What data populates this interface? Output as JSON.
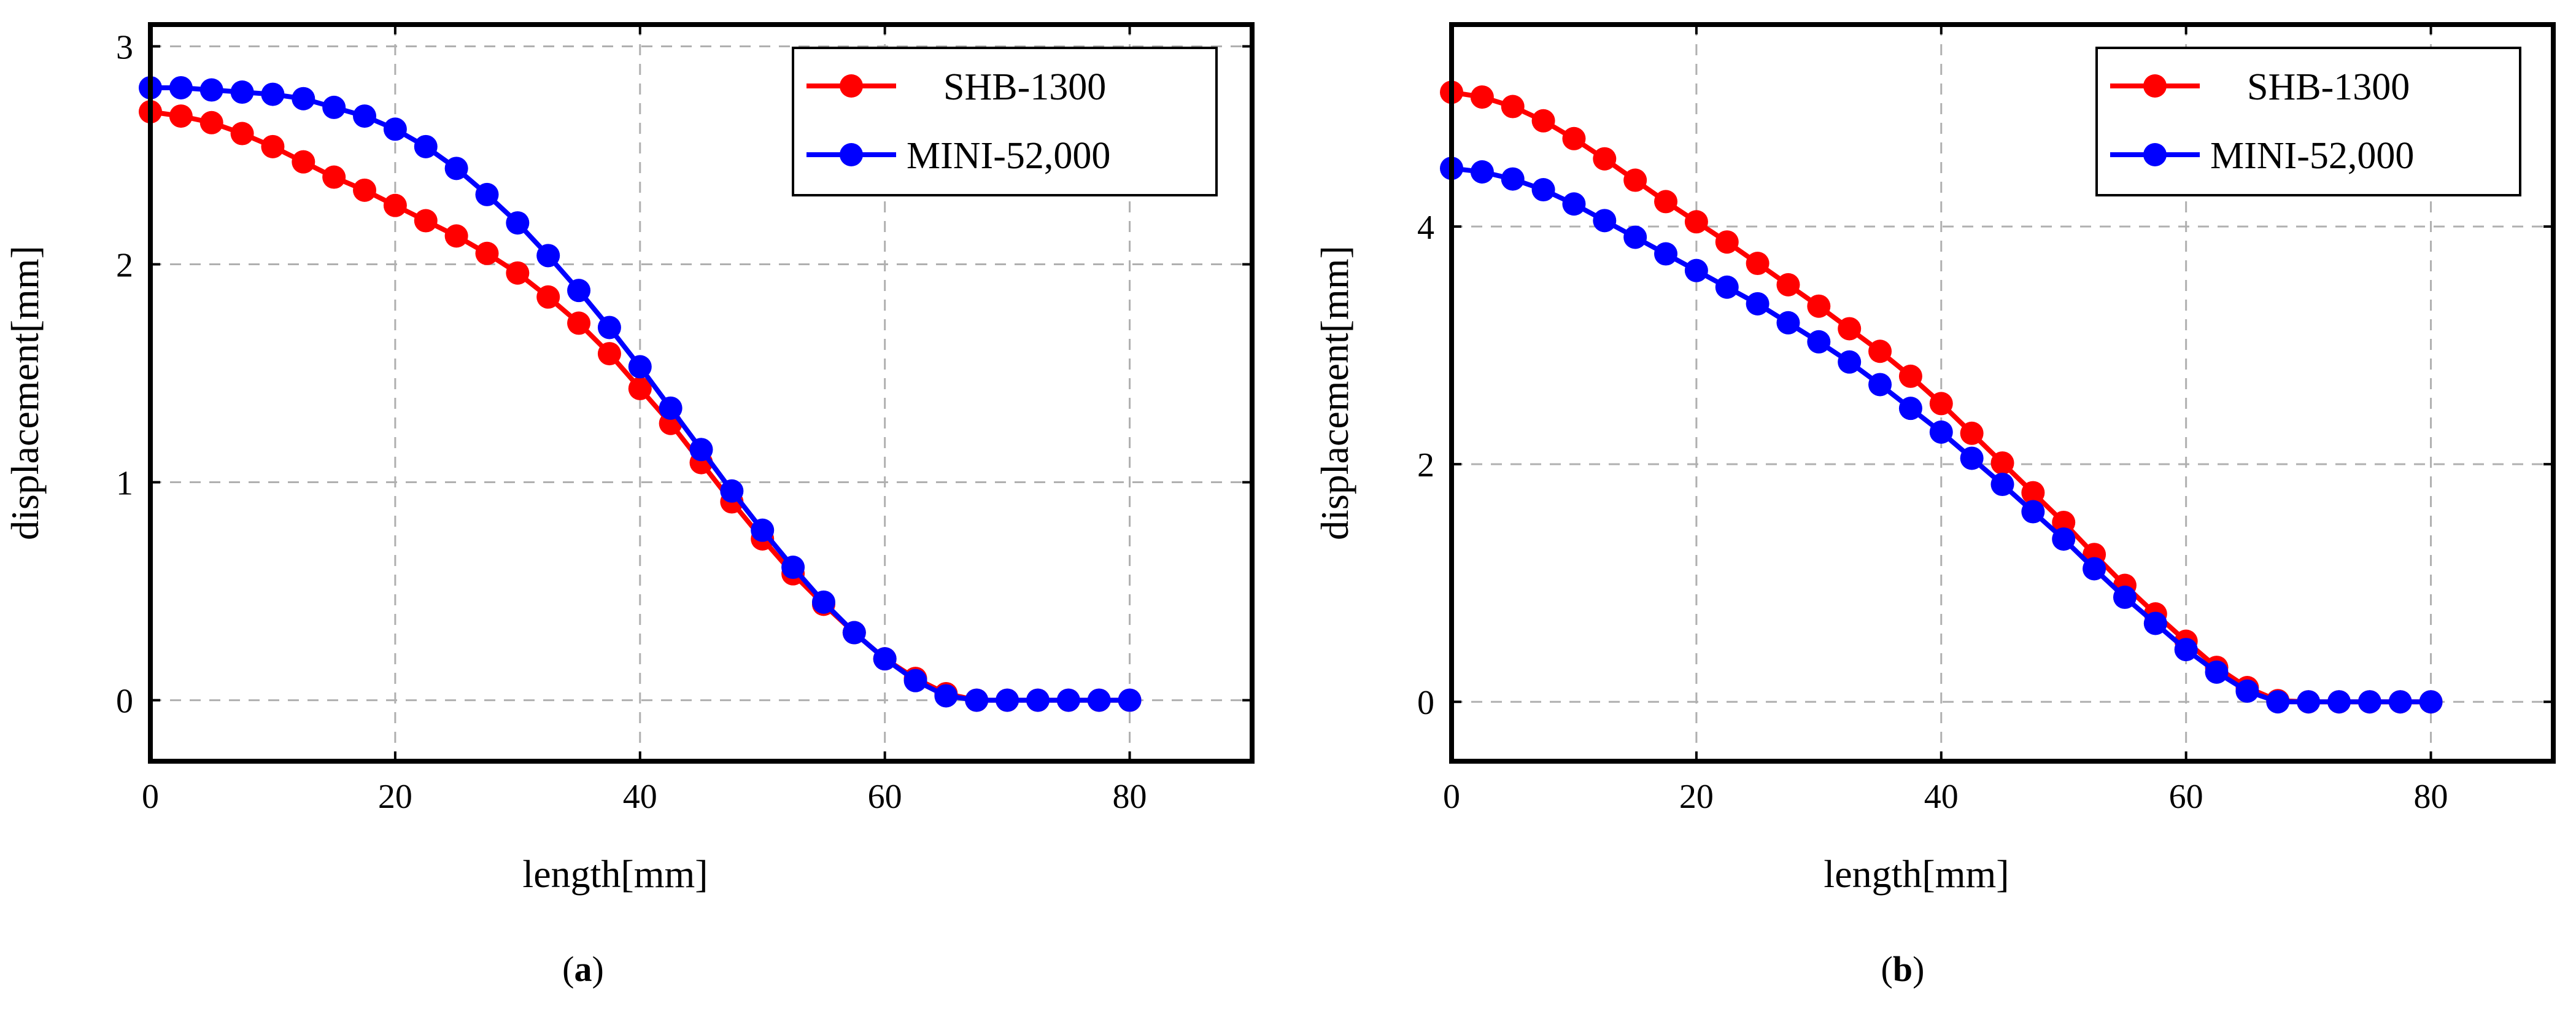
{
  "chart_data": [
    {
      "id": "a",
      "type": "line",
      "caption": "a",
      "xlabel": "length[mm]",
      "ylabel": "displacement[mm]",
      "xlim": [
        0,
        90
      ],
      "ylim": [
        -0.28,
        3.1
      ],
      "xticks": [
        0,
        20,
        40,
        60,
        80
      ],
      "yticks": [
        0,
        1,
        2,
        3
      ],
      "grid": true,
      "legend_position": "top-right",
      "x": [
        0,
        2.5,
        5,
        7.5,
        10,
        12.5,
        15,
        17.5,
        20,
        22.5,
        25,
        27.5,
        30,
        32.5,
        35,
        37.5,
        40,
        42.5,
        45,
        47.5,
        50,
        52.5,
        55,
        57.5,
        60,
        62.5,
        65,
        67.5,
        70,
        72.5,
        75,
        77.5,
        80
      ],
      "series": [
        {
          "name": "SHB-1300",
          "color": "#ff0000",
          "values": [
            2.7,
            2.68,
            2.65,
            2.6,
            2.54,
            2.47,
            2.4,
            2.34,
            2.27,
            2.2,
            2.13,
            2.05,
            1.96,
            1.85,
            1.73,
            1.59,
            1.43,
            1.27,
            1.09,
            0.91,
            0.74,
            0.58,
            0.44,
            0.31,
            0.19,
            0.1,
            0.03,
            0.0,
            0.0,
            0.0,
            0.0,
            0.0,
            0.0
          ]
        },
        {
          "name": "MINI-52,000",
          "color": "#0000ff",
          "values": [
            2.81,
            2.81,
            2.8,
            2.79,
            2.78,
            2.76,
            2.72,
            2.68,
            2.62,
            2.54,
            2.44,
            2.32,
            2.19,
            2.04,
            1.88,
            1.71,
            1.53,
            1.34,
            1.15,
            0.96,
            0.78,
            0.61,
            0.45,
            0.31,
            0.19,
            0.09,
            0.02,
            0.0,
            0.0,
            0.0,
            0.0,
            0.0,
            0.0
          ]
        }
      ]
    },
    {
      "id": "b",
      "type": "line",
      "caption": "b",
      "xlabel": "length[mm]",
      "ylabel": "displacement[mm]",
      "xlim": [
        0,
        90
      ],
      "ylim": [
        -0.5,
        5.7
      ],
      "xticks": [
        0,
        20,
        40,
        60,
        80
      ],
      "yticks": [
        0,
        2,
        4
      ],
      "grid": true,
      "legend_position": "top-right",
      "x": [
        0,
        2.5,
        5,
        7.5,
        10,
        12.5,
        15,
        17.5,
        20,
        22.5,
        25,
        27.5,
        30,
        32.5,
        35,
        37.5,
        40,
        42.5,
        45,
        47.5,
        50,
        52.5,
        55,
        57.5,
        60,
        62.5,
        65,
        67.5,
        70,
        72.5,
        75,
        77.5,
        80
      ],
      "series": [
        {
          "name": "SHB-1300",
          "color": "#ff0000",
          "values": [
            5.13,
            5.09,
            5.01,
            4.89,
            4.74,
            4.57,
            4.39,
            4.21,
            4.04,
            3.87,
            3.69,
            3.51,
            3.33,
            3.14,
            2.95,
            2.74,
            2.51,
            2.26,
            2.01,
            1.76,
            1.51,
            1.24,
            0.98,
            0.74,
            0.51,
            0.29,
            0.12,
            0.01,
            0.0,
            0.0,
            0.0,
            0.0,
            0.0
          ]
        },
        {
          "name": "MINI-52,000",
          "color": "#0000ff",
          "values": [
            4.49,
            4.46,
            4.4,
            4.31,
            4.19,
            4.05,
            3.91,
            3.77,
            3.63,
            3.49,
            3.35,
            3.19,
            3.03,
            2.86,
            2.67,
            2.47,
            2.27,
            2.05,
            1.83,
            1.6,
            1.37,
            1.12,
            0.88,
            0.66,
            0.44,
            0.25,
            0.09,
            0.0,
            0.0,
            0.0,
            0.0,
            0.0,
            0.0
          ]
        }
      ]
    }
  ]
}
